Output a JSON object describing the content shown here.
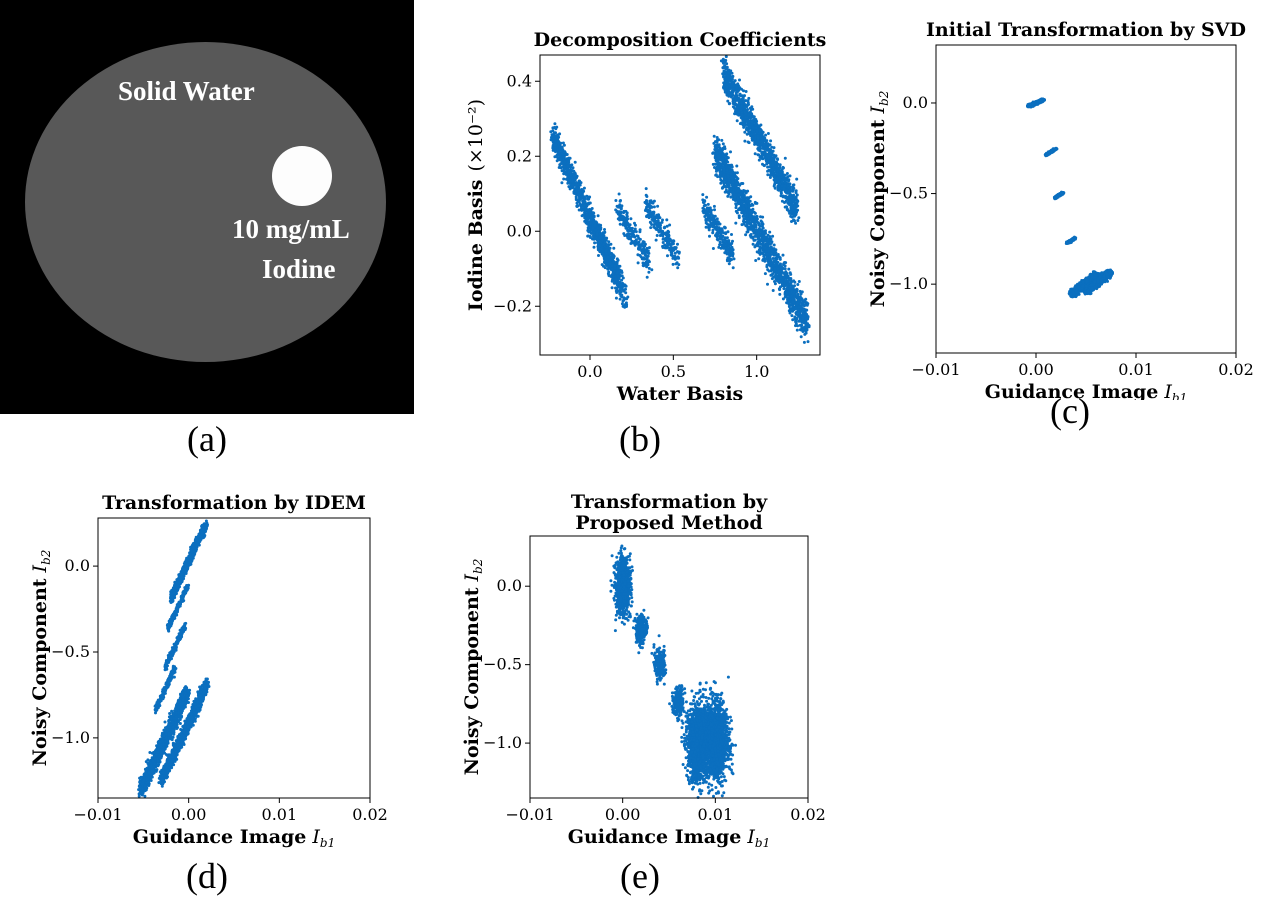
{
  "panel_a": {
    "region1_label": "Solid Water",
    "region2_label_line1": "10 mg/mL",
    "region2_label_line2": "Iodine",
    "caption": "(a)"
  },
  "captions": {
    "b": "(b)",
    "c": "(c)",
    "d": "(d)",
    "e": "(e)"
  },
  "colors": {
    "points": "#0b6fbf",
    "phantom_background": "#000000",
    "solid_water": "#585858",
    "iodine_insert": "#fdfdfd"
  },
  "chart_data": [
    {
      "id": "b",
      "type": "scatter",
      "title": "Decomposition Coefficients",
      "xlabel": "Water Basis",
      "ylabel": "Iodine Basis",
      "ylabel_unit": "(×10⁻²)",
      "xlim": [
        -0.3,
        1.38
      ],
      "ylim": [
        -0.33,
        0.47
      ],
      "xticks": [
        0.0,
        0.5,
        1.0
      ],
      "xtick_labels": [
        "0.0",
        "0.5",
        "1.0"
      ],
      "yticks": [
        -0.2,
        0.0,
        0.2,
        0.4
      ],
      "ytick_labels": [
        "−0.2",
        "0.0",
        "0.2",
        "0.4"
      ],
      "grid": false,
      "clusters": [
        {
          "center": [
            -0.02,
            0.06
          ],
          "slope": -0.95,
          "half_length": 0.2,
          "spread": 0.02,
          "count": 900
        },
        {
          "center": [
            0.1,
            -0.07
          ],
          "slope": -0.9,
          "half_length": 0.12,
          "spread": 0.018,
          "count": 300
        },
        {
          "center": [
            0.26,
            -0.01
          ],
          "slope": -0.75,
          "half_length": 0.1,
          "spread": 0.018,
          "count": 200
        },
        {
          "center": [
            0.43,
            0.0
          ],
          "slope": -0.75,
          "half_length": 0.1,
          "spread": 0.018,
          "count": 200
        },
        {
          "center": [
            0.77,
            0.0
          ],
          "slope": -0.75,
          "half_length": 0.09,
          "spread": 0.018,
          "count": 250
        },
        {
          "center": [
            1.03,
            -0.02
          ],
          "slope": -0.82,
          "half_length": 0.28,
          "spread": 0.025,
          "count": 2200
        },
        {
          "center": [
            1.02,
            0.24
          ],
          "slope": -0.82,
          "half_length": 0.22,
          "spread": 0.022,
          "count": 1200
        },
        {
          "center": [
            0.82,
            0.17
          ],
          "slope": -0.82,
          "half_length": 0.06,
          "spread": 0.015,
          "count": 150
        }
      ]
    },
    {
      "id": "c",
      "type": "scatter",
      "title": "Initial Transformation by SVD",
      "xlabel": "Guidance Image",
      "xlabel_symbol": "I_b1",
      "ylabel": "Noisy Component",
      "ylabel_symbol": "I_b2",
      "xlim": [
        -0.01,
        0.02
      ],
      "ylim": [
        -1.38,
        0.32
      ],
      "xticks": [
        -0.01,
        0.0,
        0.01,
        0.02
      ],
      "xtick_labels": [
        "−0.01",
        "0.00",
        "0.01",
        "0.02"
      ],
      "yticks": [
        -1.0,
        -0.5,
        0.0
      ],
      "ytick_labels": [
        "−1.0",
        "−0.5",
        "0.0"
      ],
      "grid": false,
      "clusters": [
        {
          "center": [
            0.0,
            0.0
          ],
          "slope": 25.0,
          "half_length": 0.0007,
          "spread": 0.0003,
          "count": 900
        },
        {
          "center": [
            0.0015,
            -0.27
          ],
          "slope": 35.0,
          "half_length": 0.0005,
          "spread": 0.0002,
          "count": 250
        },
        {
          "center": [
            0.0023,
            -0.51
          ],
          "slope": 35.0,
          "half_length": 0.0004,
          "spread": 0.0002,
          "count": 200
        },
        {
          "center": [
            0.0035,
            -0.76
          ],
          "slope": 35.0,
          "half_length": 0.0004,
          "spread": 0.0002,
          "count": 200
        },
        {
          "center": [
            0.0048,
            -1.0
          ],
          "slope": 45.0,
          "half_length": 0.0012,
          "spread": 0.0005,
          "count": 1600
        },
        {
          "center": [
            0.0062,
            -0.99
          ],
          "slope": 45.0,
          "half_length": 0.0012,
          "spread": 0.0005,
          "count": 1400
        }
      ]
    },
    {
      "id": "d",
      "type": "scatter",
      "title": "Transformation by IDEM",
      "xlabel": "Guidance Image",
      "xlabel_symbol": "I_b1",
      "ylabel": "Noisy Component",
      "ylabel_symbol": "I_b2",
      "xlim": [
        -0.01,
        0.02
      ],
      "ylim": [
        -1.35,
        0.28
      ],
      "xticks": [
        -0.01,
        0.0,
        0.01,
        0.02
      ],
      "xtick_labels": [
        "−0.01",
        "0.00",
        "0.01",
        "0.02"
      ],
      "yticks": [
        -1.0,
        -0.5,
        0.0
      ],
      "ytick_labels": [
        "−1.0",
        "−0.5",
        "0.0"
      ],
      "grid": false,
      "clusters": [
        {
          "center": [
            0.0,
            0.03
          ],
          "slope": 112.0,
          "half_length": 0.0019,
          "spread": 0.00035,
          "count": 1000
        },
        {
          "center": [
            -0.0012,
            -0.24
          ],
          "slope": 112.0,
          "half_length": 0.0011,
          "spread": 0.00025,
          "count": 250
        },
        {
          "center": [
            -0.0015,
            -0.47
          ],
          "slope": 112.0,
          "half_length": 0.0011,
          "spread": 0.00025,
          "count": 200
        },
        {
          "center": [
            -0.0026,
            -0.72
          ],
          "slope": 112.0,
          "half_length": 0.0011,
          "spread": 0.00025,
          "count": 200
        },
        {
          "center": [
            -0.0027,
            -1.02
          ],
          "slope": 112.0,
          "half_length": 0.0025,
          "spread": 0.0006,
          "count": 1600
        },
        {
          "center": [
            -0.0005,
            -0.97
          ],
          "slope": 112.0,
          "half_length": 0.0025,
          "spread": 0.0005,
          "count": 1200
        }
      ]
    },
    {
      "id": "e",
      "type": "scatter",
      "title": "Transformation by Proposed Method",
      "title_line1": "Transformation by",
      "title_line2": "Proposed Method",
      "xlabel": "Guidance Image",
      "xlabel_symbol": "I_b1",
      "ylabel": "Noisy Component",
      "ylabel_symbol": "I_b2",
      "xlim": [
        -0.01,
        0.02
      ],
      "ylim": [
        -1.35,
        0.32
      ],
      "xticks": [
        -0.01,
        0.0,
        0.01,
        0.02
      ],
      "xtick_labels": [
        "−0.01",
        "0.00",
        "0.01",
        "0.02"
      ],
      "yticks": [
        -1.0,
        -0.5,
        0.0
      ],
      "ytick_labels": [
        "−1.0",
        "−0.5",
        "0.0"
      ],
      "grid": false,
      "clusters": [
        {
          "center": [
            0.0,
            0.0
          ],
          "slope": 0,
          "half_length": 0.0,
          "spread_x": 0.0004,
          "spread_y": 0.09,
          "count": 900
        },
        {
          "center": [
            0.002,
            -0.27
          ],
          "slope": 0,
          "half_length": 0.0,
          "spread_x": 0.0003,
          "spread_y": 0.05,
          "count": 250
        },
        {
          "center": [
            0.004,
            -0.5
          ],
          "slope": 0,
          "half_length": 0.0,
          "spread_x": 0.0003,
          "spread_y": 0.05,
          "count": 200
        },
        {
          "center": [
            0.006,
            -0.74
          ],
          "slope": 0,
          "half_length": 0.0,
          "spread_x": 0.0003,
          "spread_y": 0.05,
          "count": 200
        },
        {
          "center": [
            0.0082,
            -1.0
          ],
          "slope": 0,
          "half_length": 0.0,
          "spread_x": 0.0006,
          "spread_y": 0.12,
          "count": 1500
        },
        {
          "center": [
            0.0102,
            -0.99
          ],
          "slope": 0,
          "half_length": 0.0,
          "spread_x": 0.0006,
          "spread_y": 0.12,
          "count": 1400
        }
      ]
    }
  ]
}
